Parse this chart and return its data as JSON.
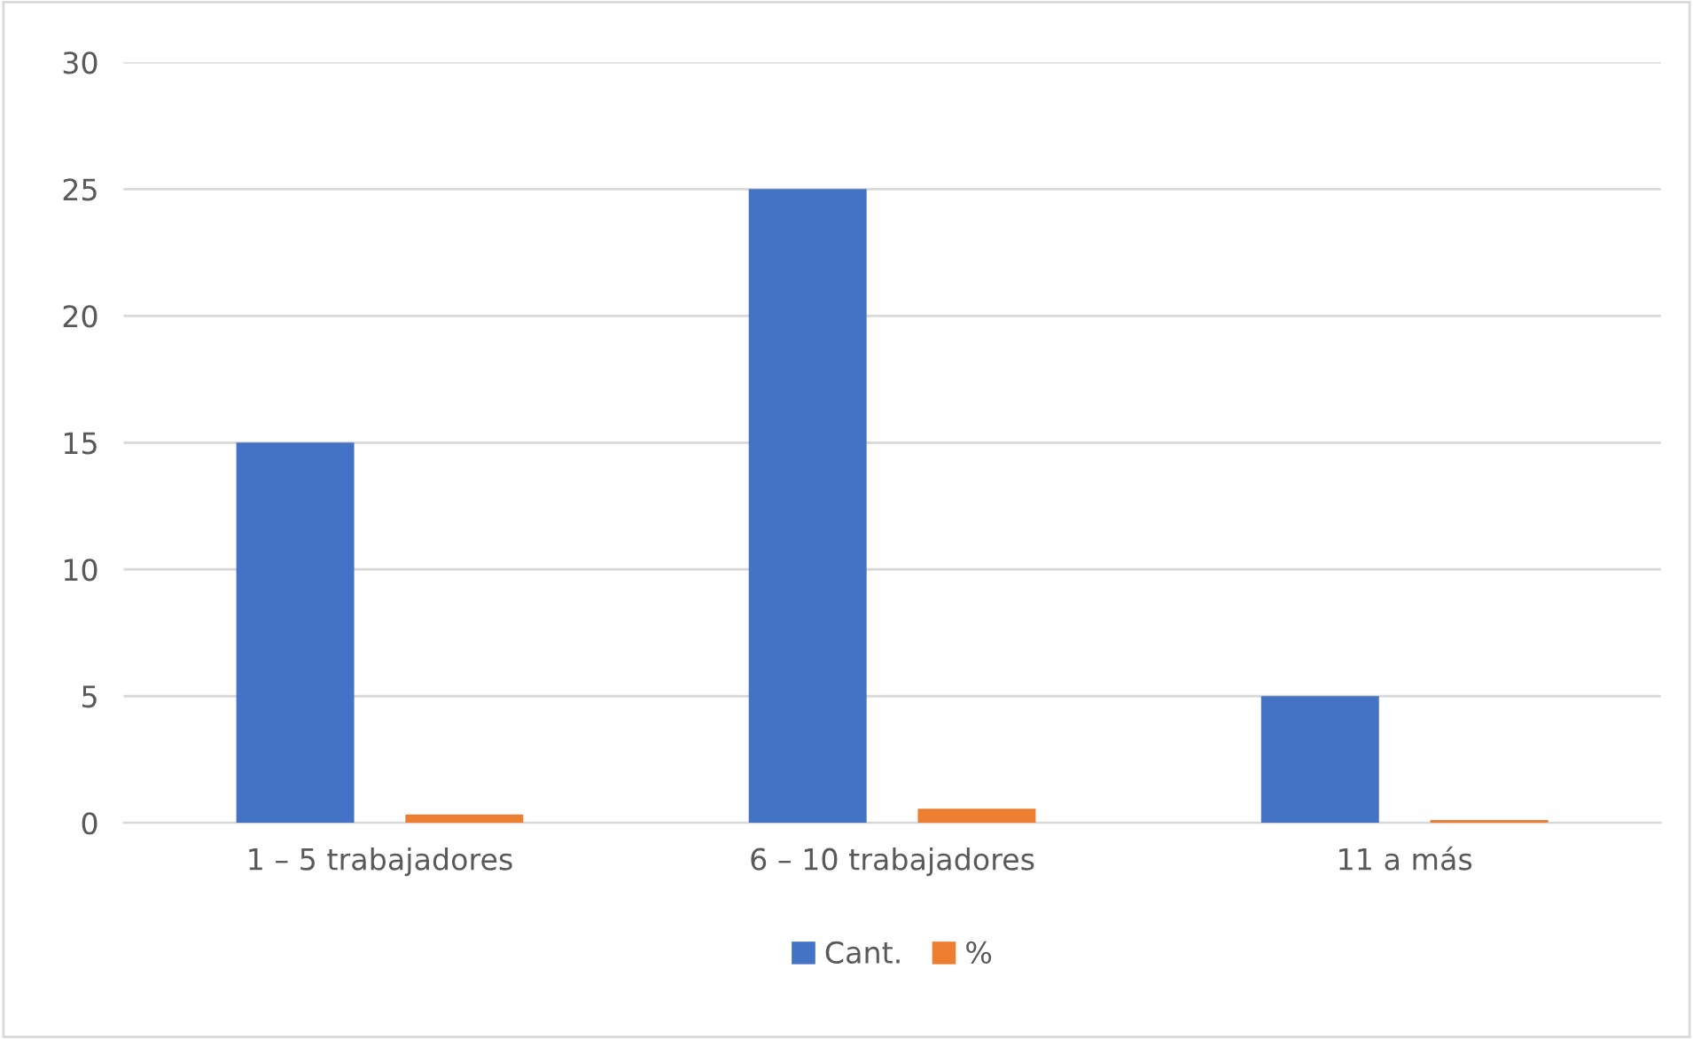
{
  "chart_data": {
    "type": "bar",
    "categories": [
      "1 – 5 trabajadores",
      "6 – 10 trabajadores",
      "11 a más"
    ],
    "series": [
      {
        "name": "Cant.",
        "color": "#4472c4",
        "values": [
          15,
          25,
          5
        ]
      },
      {
        "name": "%",
        "color": "#ed7d31",
        "values": [
          0.33,
          0.56,
          0.11
        ]
      }
    ],
    "ylim": [
      0,
      30
    ],
    "yticks": [
      0,
      5,
      10,
      15,
      20,
      25,
      30
    ],
    "grid": "y",
    "legend": "bottom"
  }
}
